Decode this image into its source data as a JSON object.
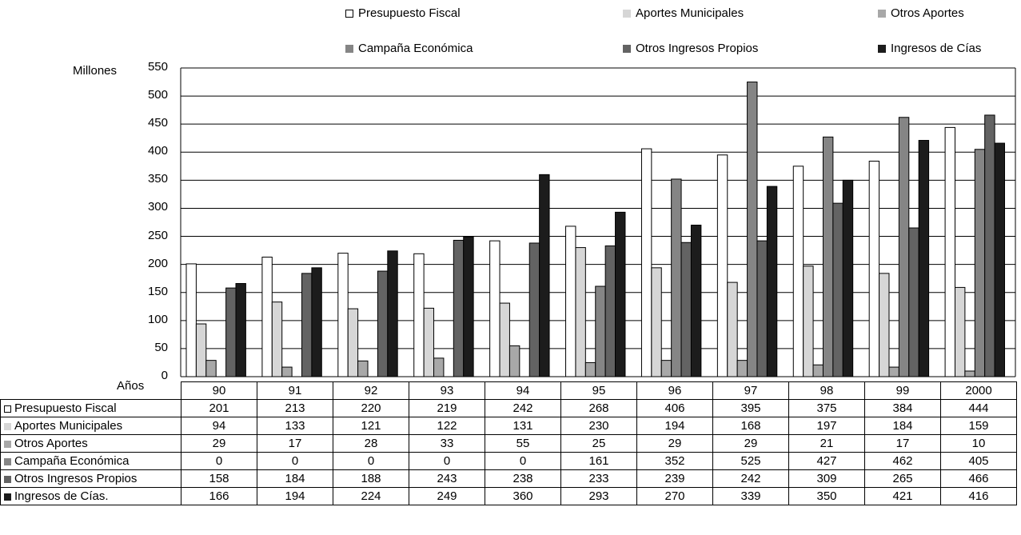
{
  "chart_data": {
    "type": "bar",
    "ylabel": "Millones",
    "xlabel": "Años",
    "ylim": [
      0,
      550
    ],
    "yticks": [
      0,
      50,
      100,
      150,
      200,
      250,
      300,
      350,
      400,
      450,
      500,
      550
    ],
    "grid": true,
    "legend_position": "top",
    "categories": [
      "90",
      "91",
      "92",
      "93",
      "94",
      "95",
      "96",
      "97",
      "98",
      "99",
      "2000"
    ],
    "series": [
      {
        "name": "Presupuesto Fiscal",
        "color": "#ffffff",
        "values": [
          201,
          213,
          220,
          219,
          242,
          268,
          406,
          395,
          375,
          384,
          444
        ]
      },
      {
        "name": "Aportes Municipales",
        "color": "#d6d6d6",
        "values": [
          94,
          133,
          121,
          122,
          131,
          230,
          194,
          168,
          197,
          184,
          159
        ]
      },
      {
        "name": "Otros Aportes",
        "color": "#a8a8a8",
        "values": [
          29,
          17,
          28,
          33,
          55,
          25,
          29,
          29,
          21,
          17,
          10
        ]
      },
      {
        "name": "Campaña Económica",
        "color": "#858585",
        "values": [
          0,
          0,
          0,
          0,
          0,
          161,
          352,
          525,
          427,
          462,
          405
        ]
      },
      {
        "name": "Otros Ingresos Propios",
        "color": "#636363",
        "values": [
          158,
          184,
          188,
          243,
          238,
          233,
          239,
          242,
          309,
          265,
          466
        ]
      },
      {
        "name": "Ingresos de Cías",
        "color": "#1c1c1c",
        "values": [
          166,
          194,
          224,
          249,
          360,
          293,
          270,
          339,
          350,
          421,
          416
        ]
      }
    ],
    "table_row_labels": [
      "Presupuesto Fiscal",
      "Aportes Municipales",
      "Otros Aportes",
      "Campaña Económica",
      "Otros Ingresos Propios",
      "Ingresos de Cías."
    ]
  }
}
